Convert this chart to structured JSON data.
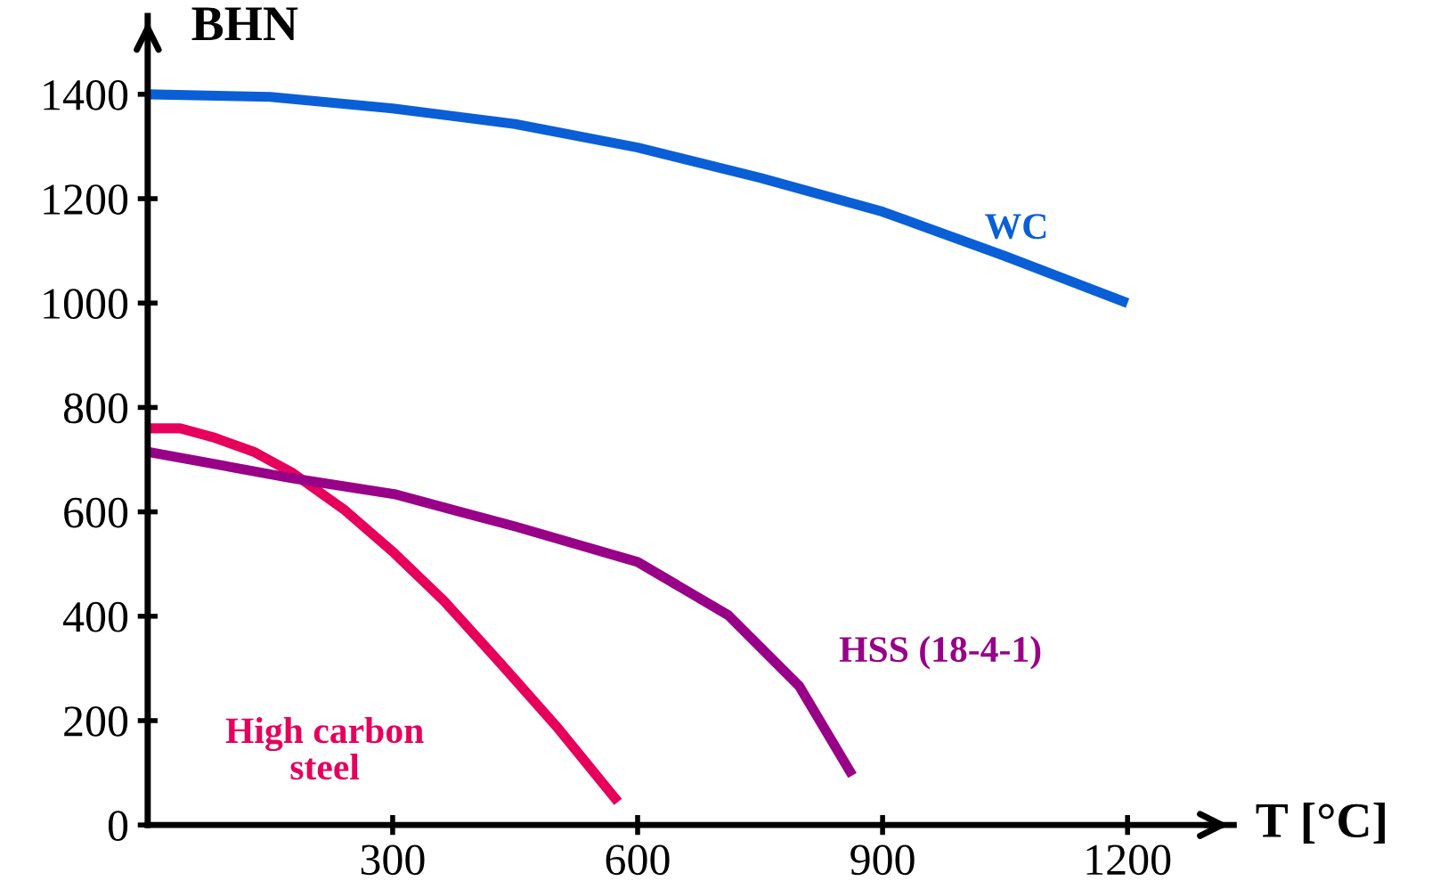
{
  "chart_data": {
    "type": "line",
    "xlabel": "T [°C]",
    "ylabel": "BHN",
    "xlim": [
      0,
      1330
    ],
    "ylim": [
      0,
      1550
    ],
    "xticks": [
      300,
      600,
      900,
      1200
    ],
    "yticks": [
      0,
      200,
      400,
      600,
      800,
      1000,
      1200,
      1400
    ],
    "grid": false,
    "legend": false,
    "marker": "none",
    "line_style": "solid",
    "series": [
      {
        "name": "WC",
        "color": "#0a5fd6",
        "x": [
          0,
          150,
          300,
          450,
          600,
          750,
          900,
          1050,
          1200
        ],
        "values": [
          1400,
          1395,
          1373,
          1343,
          1298,
          1240,
          1175,
          1090,
          1000
        ]
      },
      {
        "name": "High carbon\nsteel",
        "color": "#e6005c",
        "x": [
          0,
          40,
          80,
          130,
          178,
          240,
          302,
          363,
          428,
          500,
          576
        ],
        "values": [
          760,
          760,
          743,
          715,
          674,
          605,
          521,
          429,
          317,
          190,
          44
        ]
      },
      {
        "name": "HSS (18-4-1)",
        "color": "#990088",
        "x": [
          0,
          178,
          302,
          450,
          600,
          711,
          798,
          863
        ],
        "values": [
          715,
          664,
          634,
          572,
          504,
          402,
          266,
          95
        ]
      }
    ]
  }
}
